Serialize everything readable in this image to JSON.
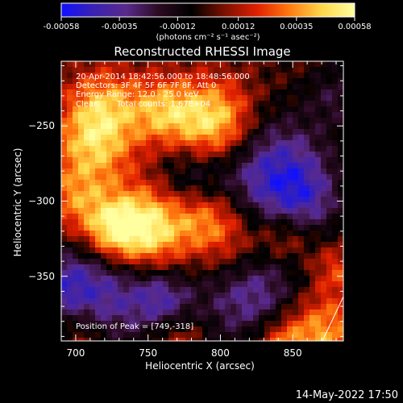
{
  "chart_data": {
    "type": "heatmap",
    "title": "Reconstructed RHESSI Image",
    "xlabel": "Heliocentric X (arcsec)",
    "ylabel": "Heliocentric Y (arcsec)",
    "xlim": [
      690,
      885
    ],
    "ylim": [
      -393,
      -207
    ],
    "x_ticks": [
      700,
      750,
      800,
      850
    ],
    "y_ticks": [
      -350,
      -300,
      -250
    ],
    "colorbar": {
      "min": -0.00058,
      "max": 0.00058,
      "ticks": [
        "-0.00058",
        "-0.00035",
        "-0.00012",
        "0.00012",
        "0.00035",
        "0.00058"
      ],
      "unit_label": "(photons cm⁻² s⁻¹ asec⁻²)",
      "colormap": [
        "#1010ff",
        "#3a22b0",
        "#5a2a8a",
        "#2a0a20",
        "#000000",
        "#7a1000",
        "#e02000",
        "#ff7a10",
        "#ffd84a",
        "#ffffa0"
      ]
    },
    "annotations": {
      "time_range": "20-Apr-2014 18:42:56.000 to 18:48:56.000",
      "detectors": "Detectors: 3F 4F 5F 6F 7F 8F, Att 0",
      "energy_range": "Energy Range: 12.0 - 25.0 keV",
      "algorithm": "Clean",
      "total_counts": "Total counts: 1.67E+04",
      "peak": "Position of Peak = [749,-318]"
    },
    "peak_position": [
      749,
      -318
    ],
    "bright_regions": [
      {
        "x": 749,
        "y": -318,
        "peak": 0.00058
      },
      {
        "x": 795,
        "y": -248,
        "peak": 0.00052
      },
      {
        "x": 712,
        "y": -262,
        "peak": 0.0004
      },
      {
        "x": 810,
        "y": -332,
        "peak": 0.00035
      },
      {
        "x": 868,
        "y": -388,
        "peak": 0.0004
      }
    ],
    "negative_regions": [
      {
        "x": 838,
        "y": -282,
        "min": -0.00048
      },
      {
        "x": 820,
        "y": -355,
        "min": -0.00045
      },
      {
        "x": 718,
        "y": -362,
        "min": -0.0004
      }
    ]
  },
  "footer": {
    "timestamp": "14-May-2022 17:50"
  }
}
